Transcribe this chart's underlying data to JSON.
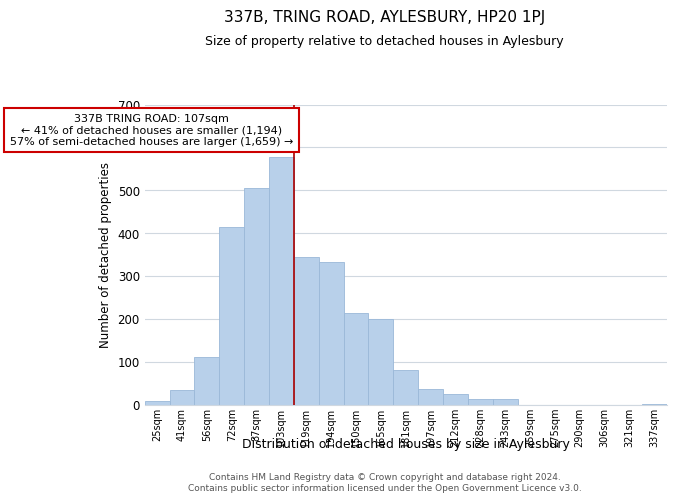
{
  "title": "337B, TRING ROAD, AYLESBURY, HP20 1PJ",
  "subtitle": "Size of property relative to detached houses in Aylesbury",
  "xlabel": "Distribution of detached houses by size in Aylesbury",
  "ylabel": "Number of detached properties",
  "bar_labels": [
    "25sqm",
    "41sqm",
    "56sqm",
    "72sqm",
    "87sqm",
    "103sqm",
    "119sqm",
    "134sqm",
    "150sqm",
    "165sqm",
    "181sqm",
    "197sqm",
    "212sqm",
    "228sqm",
    "243sqm",
    "259sqm",
    "275sqm",
    "290sqm",
    "306sqm",
    "321sqm",
    "337sqm"
  ],
  "bar_values": [
    8,
    35,
    112,
    415,
    505,
    578,
    345,
    333,
    213,
    200,
    80,
    37,
    25,
    12,
    13,
    0,
    0,
    0,
    0,
    0,
    2
  ],
  "bar_color": "#b8d0ea",
  "bar_edge_color": "#9ab8d8",
  "highlight_bar_index": 5,
  "highlight_line_color": "#aa0000",
  "annotation_text": "337B TRING ROAD: 107sqm\n← 41% of detached houses are smaller (1,194)\n57% of semi-detached houses are larger (1,659) →",
  "annotation_box_color": "#ffffff",
  "annotation_box_edge_color": "#cc0000",
  "ylim": [
    0,
    700
  ],
  "yticks": [
    0,
    100,
    200,
    300,
    400,
    500,
    600,
    700
  ],
  "bg_color": "#ffffff",
  "grid_color": "#d0d8e0",
  "footer_line1": "Contains HM Land Registry data © Crown copyright and database right 2024.",
  "footer_line2": "Contains public sector information licensed under the Open Government Licence v3.0."
}
